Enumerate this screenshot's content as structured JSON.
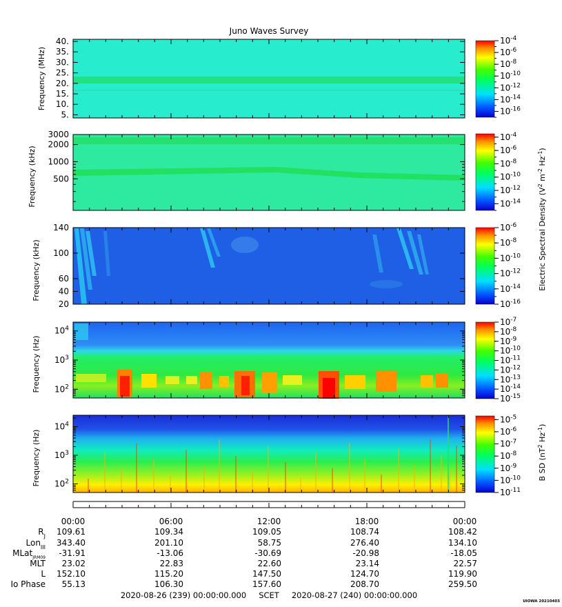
{
  "chart_data": {
    "type": "heatmap",
    "title": "Juno Waves Survey",
    "panels": [
      {
        "ylabel": "Frequency (MHz)",
        "yscale": "linear",
        "ylim": [
          3.5,
          41
        ],
        "yticks": [
          "40.",
          "35.",
          "30.",
          "25.",
          "20.",
          "15.",
          "10.",
          "5."
        ],
        "ytick_values": [
          40,
          35,
          30,
          25,
          20,
          15,
          10,
          5
        ],
        "colorbar": {
          "exponents": [
            "-4",
            "-6",
            "-8",
            "-10",
            "-12",
            "-14",
            "-16"
          ],
          "range_log": [
            -17,
            -4
          ]
        },
        "background": "#27eccd",
        "features": "narrow brighter band near 21 MHz"
      },
      {
        "ylabel": "Frequency (kHz)",
        "yscale": "log",
        "ylim": [
          140,
          3000
        ],
        "yticks": [
          "3000",
          "2000",
          "1000",
          "500"
        ],
        "ytick_values": [
          3000,
          2000,
          1000,
          500
        ],
        "colorbar": {
          "exponents": [
            "-4",
            "-6",
            "-8",
            "-10",
            "-12",
            "-14"
          ],
          "range_log": [
            -15,
            -3.5
          ]
        },
        "background": "#2ee9a0",
        "features": "bands near 2200 kHz and ~620 kHz"
      },
      {
        "ylabel": "Frequency (kHz)",
        "yscale": "linear",
        "ylim": [
          20,
          140
        ],
        "yticks": [
          "140",
          "100",
          "60",
          "40",
          "20"
        ],
        "ytick_values": [
          140,
          100,
          60,
          40,
          20
        ],
        "colorbar": {
          "exponents": [
            "-6",
            "-8",
            "-10",
            "-12",
            "-14",
            "-16"
          ],
          "range_log": [
            -16,
            -6
          ]
        },
        "background": "#1e5fe6",
        "features": "diffuse blue with cyan striations near 00:30, 08:00, 21:00"
      },
      {
        "ylabel": "Frequency (Hz)",
        "yscale": "log",
        "ylim": [
          50,
          20000
        ],
        "yticks": [
          "10^4",
          "10^3",
          "10^2"
        ],
        "ytick_values": [
          10000,
          1000,
          100
        ],
        "colorbar": {
          "exponents": [
            "-7",
            "-8",
            "-9",
            "-10",
            "-11",
            "-12",
            "-13",
            "-14",
            "-15"
          ],
          "range_log": [
            -15,
            -7
          ]
        },
        "background": "#2a66f0",
        "features": "green below ~2 kHz, intense red/yellow patches near 200 Hz"
      },
      {
        "ylabel": "Frequency (Hz)",
        "yscale": "log",
        "ylim": [
          50,
          25000
        ],
        "yticks": [
          "10^4",
          "10^3",
          "10^2"
        ],
        "ytick_values": [
          10000,
          1000,
          100
        ],
        "colorbar": {
          "exponents": [
            "-5",
            "-6",
            "-7",
            "-8",
            "-9",
            "-10",
            "-11"
          ],
          "range_log": [
            -11,
            -4.7
          ]
        },
        "background": "#1730d8",
        "features": "blue above 10 kHz grading to yellow/orange below 100 Hz"
      }
    ],
    "colorbar_labels": {
      "electric": "Electric Spectral Density (V^2 m^-2 Hz^-1)",
      "electric_prefix": "Electric Spectral Density (V",
      "electric_mid1": " m",
      "electric_mid2": " Hz",
      "electric_end": ")",
      "magnetic": "B SD (nT^2 Hz^-1)",
      "magnetic_prefix": "B SD (nT",
      "magnetic_mid": " Hz",
      "magnetic_end": ")",
      "sup_2": "2",
      "sup_m2": "-2",
      "sup_m1": "-1"
    },
    "x_ticks": [
      "00:00",
      "06:00",
      "12:00",
      "18:00",
      "00:00"
    ],
    "ephemeris": {
      "labels": [
        {
          "main": "R",
          "sub": "J"
        },
        {
          "main": "Lon",
          "sub": "III"
        },
        {
          "main": "MLat",
          "sub": "JRM09"
        },
        {
          "main": "MLT",
          "sub": ""
        },
        {
          "main": "L",
          "sub": ""
        },
        {
          "main": "Io Phase",
          "sub": ""
        }
      ],
      "rows": [
        [
          "109.61",
          "109.34",
          "109.05",
          "108.74",
          "108.42"
        ],
        [
          "343.40",
          "201.10",
          "58.75",
          "276.40",
          "134.10"
        ],
        [
          "-31.91",
          "-13.06",
          "-30.69",
          "-20.98",
          "-18.05"
        ],
        [
          "23.02",
          "22.83",
          "22.60",
          "23.14",
          "22.57"
        ],
        [
          "152.10",
          "115.20",
          "147.50",
          "124.70",
          "119.90"
        ],
        [
          "55.13",
          "106.30",
          "157.60",
          "208.70",
          "259.50"
        ]
      ]
    },
    "time_range": {
      "start": "2020-08-26 (239) 00:00:00.000",
      "label": "SCET",
      "end": "2020-08-27 (240) 00:00:00.000"
    },
    "credit": "UIOWA 20210403"
  }
}
